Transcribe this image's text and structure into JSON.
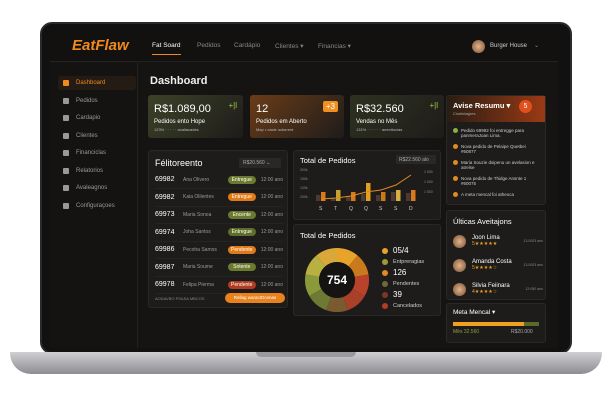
{
  "app": {
    "logo": "EatFlaw",
    "user": "Burger House"
  },
  "nav": [
    {
      "label": "Fat Soard"
    },
    {
      "label": "Pedidos"
    },
    {
      "label": "Cardápio"
    },
    {
      "label": "Clientes ▾"
    },
    {
      "label": "Financias ▾"
    }
  ],
  "sidebar": [
    {
      "label": "Dashboard",
      "icon": "mail-icon"
    },
    {
      "label": "Pedidos",
      "icon": "bag-icon"
    },
    {
      "label": "Cardapio",
      "icon": "menu-icon"
    },
    {
      "label": "Clientes",
      "icon": "users-icon"
    },
    {
      "label": "Financiclas",
      "icon": "coins-icon"
    },
    {
      "label": "Relatorios",
      "icon": "report-icon"
    },
    {
      "label": "Avaleagnos",
      "icon": "star-icon"
    },
    {
      "label": "Configuraçoes",
      "icon": "gear-icon"
    }
  ],
  "page_title": "Dashboard",
  "cards": [
    {
      "value": "R$1.089,00",
      "label": "Pedidos ento Hope",
      "sub": "123% · · · · · avaliacades",
      "badge": "+|l",
      "color": "#3c4228"
    },
    {
      "value": "12",
      "label": "Pedidos em Aberto",
      "sub": "Mep • cacie ocberent",
      "badge": "+3",
      "color": "#6a3c18"
    },
    {
      "value": "R$32.560",
      "label": "Vendas no Mês",
      "sub": "131% · · · · · · aeenitocias",
      "badge": "+|l",
      "color": "#2e3220"
    }
  ],
  "orders": {
    "title": "Félitoreento",
    "filter": "R$20.560 ⌄",
    "footer": "AODAVBO PSASA MBCOS",
    "button": "Rellag waractDcenas",
    "rows": [
      {
        "id": "69982",
        "name": "Ana Olivero",
        "status": "Entregue",
        "color": "#6b7a2e",
        "time": "12:00 ano"
      },
      {
        "id": "69982",
        "name": "Kaia Olilentes",
        "status": "Entregue",
        "color": "#e07a18",
        "time": "12:00 ano"
      },
      {
        "id": "69973",
        "name": "Maria Sonoa",
        "status": "Encente",
        "color": "#6b7a2e",
        "time": "12:00 ano"
      },
      {
        "id": "69974",
        "name": "Joha Santos",
        "status": "Entregue",
        "color": "#5e6e2a",
        "time": "12:00 ano"
      },
      {
        "id": "69986",
        "name": "Pecoha Samos",
        "status": "Pendente",
        "color": "#e07a18",
        "time": "12:00 ano"
      },
      {
        "id": "69987",
        "name": "Maria Soume",
        "status": "Sntente",
        "color": "#6b7a2e",
        "time": "12:00 ano"
      },
      {
        "id": "69978",
        "name": "Felipa Pierma",
        "status": "Pendente",
        "color": "#b03a22",
        "time": "12:00 ano"
      }
    ]
  },
  "bar_chart": {
    "title": "Total de Pedidos",
    "filter": "R$22.560 alo",
    "yleft": [
      "300k",
      "150k",
      "100k",
      "200k"
    ],
    "yright": [
      "1 500",
      "1 000",
      "1 500"
    ],
    "categories": [
      "S",
      "T",
      "Q",
      "Q",
      "S",
      "S",
      "D"
    ]
  },
  "donut": {
    "title": "Total de Pedidos",
    "center": "754",
    "legend": [
      {
        "value": "05/4",
        "color": "#e8a42a"
      },
      {
        "label": "Entpreragias",
        "color": "#9a9a3a"
      },
      {
        "value": "126",
        "color": "#e08a20"
      },
      {
        "label": "Pendentes",
        "color": "#6e6a38"
      },
      {
        "value": "39",
        "color": "#7a3a22"
      },
      {
        "label": "Cancelados",
        "color": "#b83a22"
      }
    ]
  },
  "aviso": {
    "title": "Avise Resumu ▾",
    "subtitle": "Cioritelagres",
    "count": "5",
    "items": [
      "Pedido 69982 foi entregge para panmeraJoan Lima.",
      "Nova pedido de Pelaipe Quetbei #60877",
      "Maria Souzie dsipenu un avelasion e atrelse",
      "Nova pedido de Thidge Ansnte 1 #60075",
      "A meta mencal foi atheoca"
    ]
  },
  "reviews": {
    "title": "Últicas Aveitajons",
    "items": [
      {
        "name": "Joon Lima",
        "rating": "5★★★★★",
        "time": "12:0003 ann"
      },
      {
        "name": "Amanda Costa",
        "rating": "5★★★★☆",
        "time": "12:0003 ann"
      },
      {
        "name": "Silvia Feiinara",
        "rating": "4★★★★☆",
        "time": "12:050 ann"
      }
    ]
  },
  "meta": {
    "title": "Meta Mencal ▾",
    "current": "Mês 32.560",
    "target": "R$20.000",
    "progress": 0.82
  }
}
